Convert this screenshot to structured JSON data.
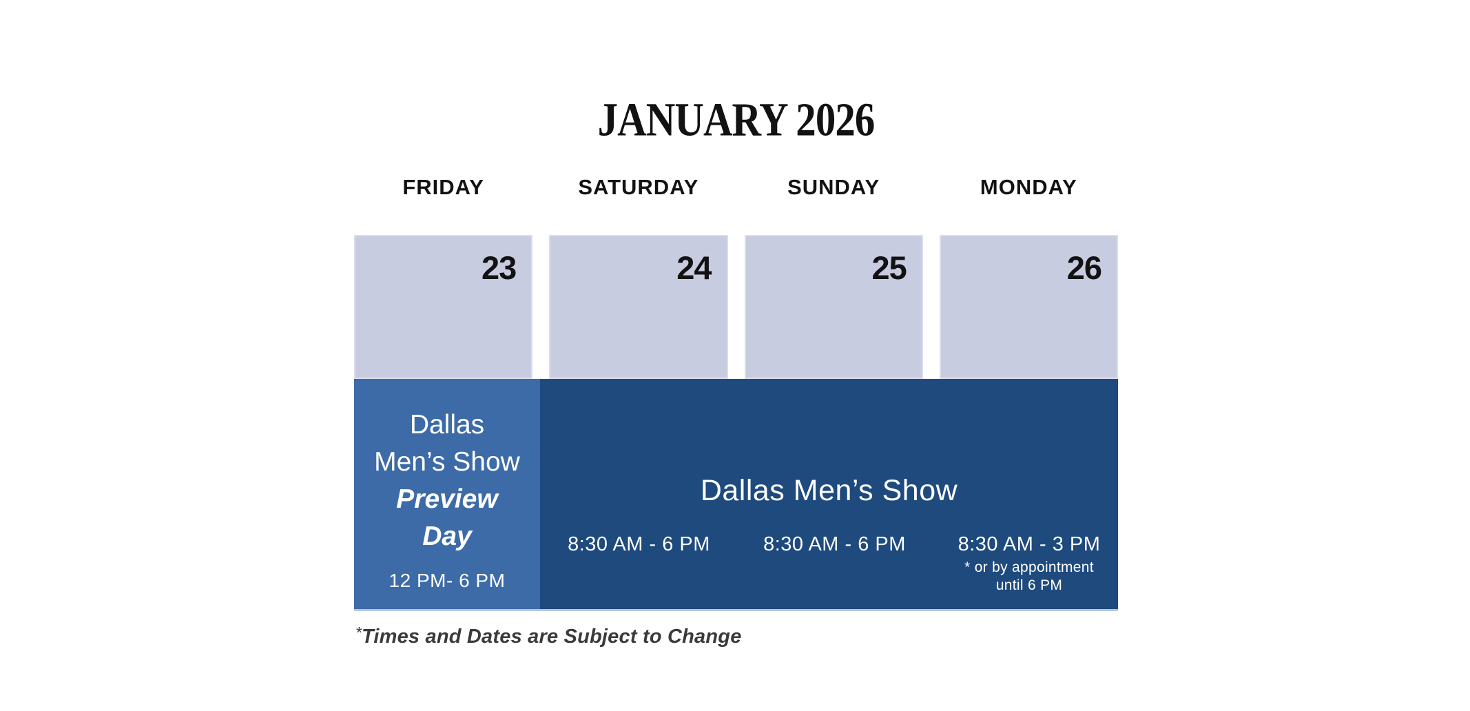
{
  "title": "JANUARY 2026",
  "colors": {
    "date_cell": "#c8cce1",
    "preview_cell": "#3d6ba7",
    "show_cell": "#1e4a7e",
    "text_dark": "#121212",
    "footer_text": "#3a3a3a",
    "text_white": "#ffffff"
  },
  "days": [
    {
      "label": "FRIDAY",
      "date": "23"
    },
    {
      "label": "SATURDAY",
      "date": "24"
    },
    {
      "label": "SUNDAY",
      "date": "25"
    },
    {
      "label": "MONDAY",
      "date": "26"
    }
  ],
  "preview_event": {
    "line1": "Dallas",
    "line2": "Men’s Show",
    "line3": "Preview",
    "line4": "Day",
    "time": "12 PM- 6 PM"
  },
  "main_event": {
    "title": "Dallas Men’s Show",
    "times": [
      {
        "day": "SATURDAY",
        "time": "8:30 AM - 6 PM"
      },
      {
        "day": "SUNDAY",
        "time": "8:30 AM - 6 PM"
      },
      {
        "day": "MONDAY",
        "time": "8:30 AM - 3 PM",
        "note1": "* or by appointment",
        "note2": "until 6 PM"
      }
    ]
  },
  "footer": {
    "asterisk": "*",
    "text": "Times and Dates are Subject to Change"
  }
}
